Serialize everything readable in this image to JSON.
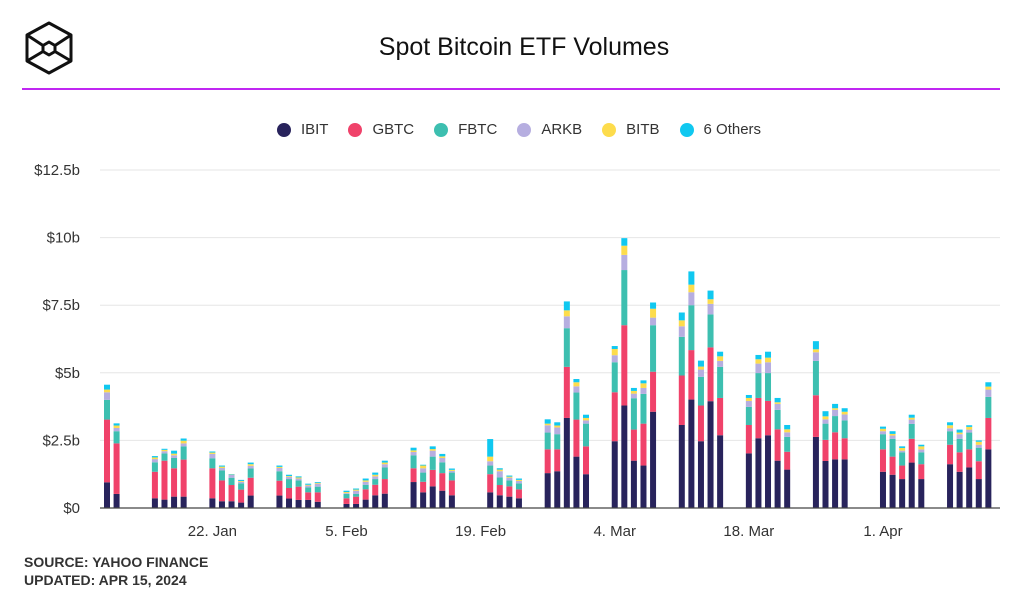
{
  "header": {
    "title": "Spot Bitcoin ETF Volumes",
    "logo": "cube-hexagon-logo"
  },
  "footer": {
    "source": "SOURCE: YAHOO FINANCE",
    "updated": "UPDATED: APR 15, 2024"
  },
  "chart_data": {
    "type": "bar",
    "stacked": true,
    "title": "Spot Bitcoin ETF Volumes",
    "ylim": [
      0,
      12.5
    ],
    "y_ticks": [
      {
        "value": 0,
        "label": "$0"
      },
      {
        "value": 2.5,
        "label": "$2.5b"
      },
      {
        "value": 5,
        "label": "$5b"
      },
      {
        "value": 7.5,
        "label": "$7.5b"
      },
      {
        "value": 10,
        "label": "$10b"
      },
      {
        "value": 12.5,
        "label": "$12.5b"
      }
    ],
    "x_ticks": [
      {
        "date": "2024-01-22",
        "label": "22. Jan"
      },
      {
        "date": "2024-02-05",
        "label": "5. Feb"
      },
      {
        "date": "2024-02-19",
        "label": "19. Feb"
      },
      {
        "date": "2024-03-04",
        "label": "4. Mar"
      },
      {
        "date": "2024-03-18",
        "label": "18. Mar"
      },
      {
        "date": "2024-04-01",
        "label": "1. Apr"
      }
    ],
    "grid": true,
    "legend_position": "top",
    "series_order": [
      "IBIT",
      "GBTC",
      "FBTC",
      "ARKB",
      "BITB",
      "6 Others"
    ],
    "colors": {
      "IBIT": "#28235c",
      "GBTC": "#f0426a",
      "FBTC": "#3dbfb0",
      "ARKB": "#b6aee0",
      "BITB": "#fddc4c",
      "6 Others": "#10c8f0"
    },
    "x": [
      "2024-01-11",
      "2024-01-12",
      "2024-01-16",
      "2024-01-17",
      "2024-01-18",
      "2024-01-19",
      "2024-01-22",
      "2024-01-23",
      "2024-01-24",
      "2024-01-25",
      "2024-01-26",
      "2024-01-29",
      "2024-01-30",
      "2024-01-31",
      "2024-02-01",
      "2024-02-02",
      "2024-02-05",
      "2024-02-06",
      "2024-02-07",
      "2024-02-08",
      "2024-02-09",
      "2024-02-12",
      "2024-02-13",
      "2024-02-14",
      "2024-02-15",
      "2024-02-16",
      "2024-02-20",
      "2024-02-21",
      "2024-02-22",
      "2024-02-23",
      "2024-02-26",
      "2024-02-27",
      "2024-02-28",
      "2024-02-29",
      "2024-03-01",
      "2024-03-04",
      "2024-03-05",
      "2024-03-06",
      "2024-03-07",
      "2024-03-08",
      "2024-03-11",
      "2024-03-12",
      "2024-03-13",
      "2024-03-14",
      "2024-03-15",
      "2024-03-18",
      "2024-03-19",
      "2024-03-20",
      "2024-03-21",
      "2024-03-22",
      "2024-03-25",
      "2024-03-26",
      "2024-03-27",
      "2024-03-28",
      "2024-04-01",
      "2024-04-02",
      "2024-04-03",
      "2024-04-04",
      "2024-04-05",
      "2024-04-08",
      "2024-04-09",
      "2024-04-10",
      "2024-04-11",
      "2024-04-12"
    ],
    "unit": "USD billions",
    "series": [
      {
        "name": "IBIT",
        "values": [
          0.95,
          0.52,
          0.36,
          0.31,
          0.42,
          0.42,
          0.36,
          0.25,
          0.25,
          0.2,
          0.46,
          0.46,
          0.35,
          0.3,
          0.3,
          0.23,
          0.15,
          0.15,
          0.31,
          0.47,
          0.53,
          0.96,
          0.58,
          0.8,
          0.64,
          0.47,
          0.58,
          0.47,
          0.42,
          0.36,
          1.29,
          1.36,
          3.33,
          1.9,
          1.25,
          2.47,
          3.79,
          1.75,
          1.57,
          3.56,
          3.07,
          4.01,
          2.47,
          3.95,
          2.69,
          2.02,
          2.58,
          2.69,
          1.75,
          1.42,
          2.63,
          1.74,
          1.8,
          1.8,
          1.34,
          1.23,
          1.07,
          1.68,
          1.07,
          1.62,
          1.34,
          1.5,
          1.07,
          2.17
        ]
      },
      {
        "name": "GBTC",
        "values": [
          2.32,
          1.87,
          0.98,
          1.44,
          1.05,
          1.37,
          1.11,
          0.77,
          0.6,
          0.48,
          0.66,
          0.55,
          0.39,
          0.49,
          0.28,
          0.35,
          0.21,
          0.27,
          0.38,
          0.39,
          0.54,
          0.51,
          0.39,
          0.61,
          0.65,
          0.55,
          0.67,
          0.38,
          0.38,
          0.33,
          0.88,
          0.81,
          1.89,
          1.37,
          1.03,
          1.81,
          2.97,
          1.15,
          1.55,
          1.48,
          1.83,
          1.83,
          1.32,
          1.99,
          1.38,
          1.05,
          1.49,
          1.27,
          1.16,
          0.66,
          1.54,
          0.78,
          1.0,
          0.78,
          0.83,
          0.67,
          0.5,
          0.88,
          0.55,
          0.72,
          0.72,
          0.67,
          0.66,
          1.16
        ]
      },
      {
        "name": "FBTC",
        "values": [
          0.73,
          0.45,
          0.35,
          0.27,
          0.38,
          0.49,
          0.37,
          0.37,
          0.27,
          0.23,
          0.34,
          0.35,
          0.33,
          0.23,
          0.18,
          0.21,
          0.16,
          0.1,
          0.17,
          0.21,
          0.43,
          0.48,
          0.34,
          0.49,
          0.4,
          0.29,
          0.32,
          0.28,
          0.22,
          0.22,
          0.62,
          0.56,
          1.43,
          1.0,
          0.84,
          1.11,
          2.04,
          1.16,
          1.1,
          1.72,
          1.43,
          1.66,
          1.06,
          1.22,
          1.15,
          0.67,
          0.92,
          1.03,
          0.72,
          0.55,
          1.27,
          0.6,
          0.6,
          0.66,
          0.56,
          0.66,
          0.49,
          0.55,
          0.44,
          0.5,
          0.5,
          0.62,
          0.5,
          0.78
        ]
      },
      {
        "name": "ARKB",
        "values": [
          0.28,
          0.12,
          0.12,
          0.08,
          0.1,
          0.11,
          0.16,
          0.09,
          0.11,
          0.06,
          0.1,
          0.12,
          0.08,
          0.07,
          0.07,
          0.11,
          0.03,
          0.12,
          0.11,
          0.1,
          0.12,
          0.12,
          0.16,
          0.22,
          0.16,
          0.06,
          0.16,
          0.23,
          0.1,
          0.09,
          0.27,
          0.25,
          0.44,
          0.23,
          0.12,
          0.26,
          0.56,
          0.17,
          0.22,
          0.28,
          0.39,
          0.48,
          0.27,
          0.39,
          0.22,
          0.22,
          0.35,
          0.4,
          0.22,
          0.17,
          0.32,
          0.16,
          0.23,
          0.22,
          0.11,
          0.12,
          0.06,
          0.16,
          0.11,
          0.11,
          0.17,
          0.11,
          0.11,
          0.27
        ]
      },
      {
        "name": "BITB",
        "values": [
          0.1,
          0.09,
          0.06,
          0.05,
          0.06,
          0.1,
          0.05,
          0.05,
          0.01,
          0.03,
          0.06,
          0.04,
          0.03,
          0.04,
          0.03,
          0.03,
          0.04,
          0.04,
          0.05,
          0.06,
          0.06,
          0.06,
          0.1,
          0.06,
          0.06,
          0.04,
          0.17,
          0.06,
          0.04,
          0.04,
          0.06,
          0.07,
          0.22,
          0.15,
          0.09,
          0.23,
          0.34,
          0.1,
          0.17,
          0.33,
          0.22,
          0.28,
          0.11,
          0.17,
          0.17,
          0.11,
          0.16,
          0.17,
          0.06,
          0.11,
          0.11,
          0.11,
          0.06,
          0.1,
          0.09,
          0.06,
          0.1,
          0.07,
          0.11,
          0.11,
          0.06,
          0.1,
          0.11,
          0.11
        ]
      },
      {
        "name": "6 Others",
        "values": [
          0.18,
          0.08,
          0.05,
          0.04,
          0.11,
          0.08,
          0.04,
          0.04,
          0.01,
          0.04,
          0.06,
          0.05,
          0.05,
          0.04,
          0.04,
          0.03,
          0.05,
          0.04,
          0.07,
          0.08,
          0.07,
          0.1,
          0.03,
          0.1,
          0.09,
          0.05,
          0.65,
          0.05,
          0.04,
          0.05,
          0.16,
          0.12,
          0.33,
          0.12,
          0.12,
          0.11,
          0.28,
          0.11,
          0.11,
          0.23,
          0.29,
          0.49,
          0.22,
          0.32,
          0.17,
          0.11,
          0.16,
          0.22,
          0.16,
          0.16,
          0.3,
          0.19,
          0.16,
          0.13,
          0.08,
          0.1,
          0.06,
          0.11,
          0.06,
          0.11,
          0.11,
          0.06,
          0.05,
          0.16
        ]
      }
    ]
  }
}
